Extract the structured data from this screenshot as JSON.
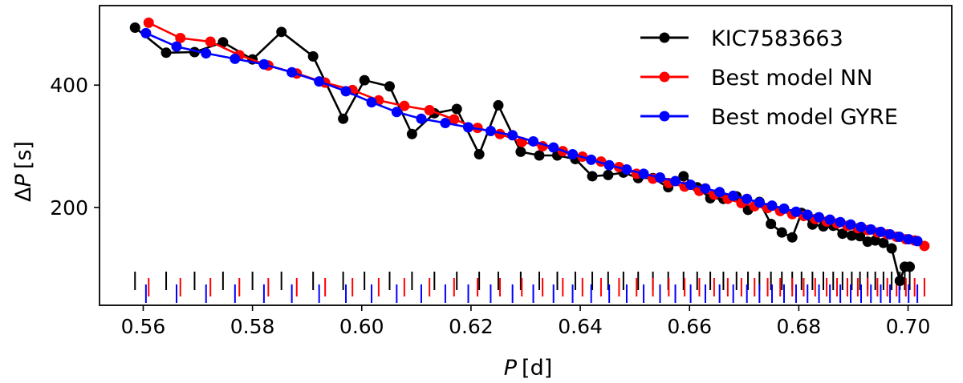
{
  "chart_data": {
    "type": "line",
    "xlabel_italic": "P",
    "xlabel_unit": "[d]",
    "ylabel_prefix": "Δ",
    "ylabel_italic": "P",
    "ylabel_unit": "[s]",
    "xlim": [
      0.552,
      0.708
    ],
    "ylim": [
      40,
      530
    ],
    "xticks": [
      0.56,
      0.58,
      0.6,
      0.62,
      0.64,
      0.66,
      0.68,
      0.7
    ],
    "xtick_labels": [
      "0.56",
      "0.58",
      "0.60",
      "0.62",
      "0.64",
      "0.66",
      "0.68",
      "0.70"
    ],
    "yticks": [
      200,
      400
    ],
    "ytick_labels": [
      "200",
      "400"
    ],
    "legend_position": "top-right",
    "series": [
      {
        "name": "KIC7583663",
        "color": "#000000",
        "x": [
          0.5585,
          0.5642,
          0.5694,
          0.5746,
          0.58,
          0.5853,
          0.5911,
          0.5966,
          0.6005,
          0.6051,
          0.6092,
          0.6133,
          0.6174,
          0.6215,
          0.625,
          0.6291,
          0.6325,
          0.6358,
          0.6391,
          0.6422,
          0.6451,
          0.6479,
          0.6506,
          0.6533,
          0.6561,
          0.6589,
          0.6614,
          0.6638,
          0.6662,
          0.6686,
          0.6707,
          0.6728,
          0.6749,
          0.6769,
          0.6788,
          0.6805,
          0.6825,
          0.6845,
          0.6863,
          0.688,
          0.6897,
          0.6912,
          0.6926,
          0.694,
          0.6955,
          0.697,
          0.6985,
          0.6994,
          0.7003
        ],
        "y": [
          494,
          453,
          454,
          470,
          442,
          487,
          447,
          345,
          408,
          398,
          320,
          354,
          361,
          287,
          367,
          291,
          285,
          285,
          279,
          251,
          253,
          257,
          248,
          248,
          233,
          251,
          233,
          215,
          214,
          218,
          196,
          209,
          173,
          159,
          151,
          191,
          172,
          169,
          170,
          157,
          154,
          153,
          144,
          146,
          142,
          133,
          80,
          103,
          103
        ]
      },
      {
        "name": "Best model NN",
        "color": "#ff0000",
        "x": [
          0.561,
          0.5668,
          0.5723,
          0.5776,
          0.5829,
          0.5881,
          0.5933,
          0.5983,
          0.6031,
          0.6078,
          0.6124,
          0.6169,
          0.6212,
          0.6253,
          0.6293,
          0.6331,
          0.6368,
          0.6404,
          0.6438,
          0.6471,
          0.6503,
          0.6533,
          0.6562,
          0.6591,
          0.6618,
          0.6645,
          0.667,
          0.6695,
          0.6719,
          0.6743,
          0.6766,
          0.6788,
          0.6809,
          0.683,
          0.6851,
          0.687,
          0.6889,
          0.6908,
          0.6926,
          0.6944,
          0.6962,
          0.6979,
          0.6996,
          0.7012,
          0.703
        ],
        "y": [
          502,
          477,
          471,
          449,
          432,
          419,
          404,
          392,
          375,
          366,
          359,
          344,
          330,
          320,
          307,
          300,
          292,
          283,
          275,
          266,
          255,
          247,
          240,
          234,
          227,
          221,
          214,
          207,
          202,
          199,
          194,
          189,
          186,
          181,
          177,
          174,
          170,
          166,
          163,
          159,
          156,
          152,
          148,
          146,
          137
        ]
      },
      {
        "name": "Best model GYRE",
        "color": "#0000ff",
        "x": [
          0.5605,
          0.5661,
          0.5715,
          0.5768,
          0.5821,
          0.5872,
          0.5922,
          0.5971,
          0.6018,
          0.6064,
          0.6109,
          0.6153,
          0.6195,
          0.6236,
          0.6276,
          0.6314,
          0.6351,
          0.6386,
          0.642,
          0.6453,
          0.6485,
          0.6516,
          0.6546,
          0.6574,
          0.6602,
          0.6629,
          0.6655,
          0.668,
          0.6705,
          0.6728,
          0.6751,
          0.6773,
          0.6795,
          0.6816,
          0.6837,
          0.6857,
          0.6876,
          0.6895,
          0.6914,
          0.6932,
          0.695,
          0.6967,
          0.6984,
          0.7001,
          0.7017
        ],
        "y": [
          485,
          463,
          452,
          443,
          434,
          421,
          406,
          390,
          372,
          356,
          345,
          338,
          331,
          325,
          318,
          308,
          298,
          287,
          278,
          269,
          262,
          255,
          249,
          243,
          237,
          231,
          225,
          219,
          214,
          208,
          203,
          198,
          193,
          188,
          184,
          180,
          176,
          172,
          168,
          164,
          160,
          156,
          152,
          148,
          145
        ]
      }
    ]
  }
}
